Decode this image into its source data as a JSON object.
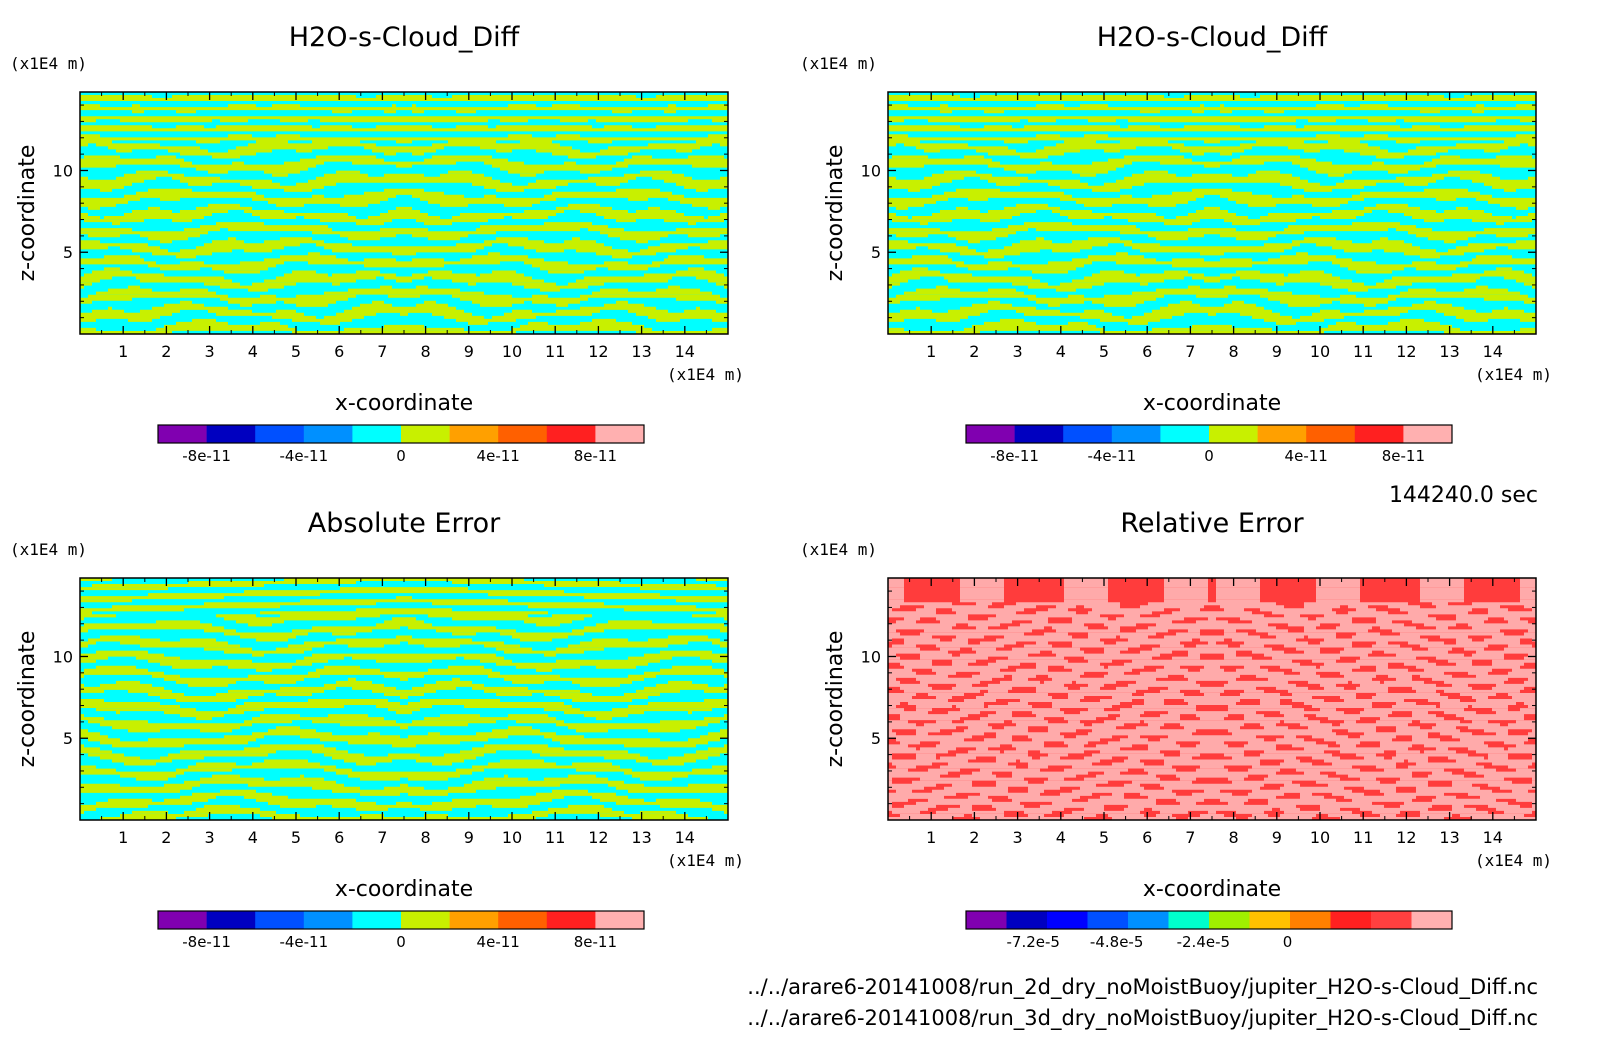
{
  "time_label": "144240.0 sec",
  "footer": {
    "file1": "../../arare6-20141008/run_2d_dry_noMoistBuoy/jupiter_H2O-s-Cloud_Diff.nc",
    "file2": "../../arare6-20141008/run_3d_dry_noMoistBuoy/jupiter_H2O-s-Cloud_Diff.nc"
  },
  "chart_data": [
    {
      "type": "heatmap",
      "title": "H2O-s-Cloud_Diff",
      "xlabel": "x-coordinate",
      "ylabel": "z-coordinate",
      "x_unit": "(x1E4 m)",
      "y_unit": "(x1E4 m)",
      "xlim": [
        0,
        15
      ],
      "ylim": [
        0,
        14.8
      ],
      "xticks": [
        "1",
        "2",
        "3",
        "4",
        "5",
        "6",
        "7",
        "8",
        "9",
        "10",
        "11",
        "12",
        "13",
        "14"
      ],
      "yticks": [
        "5",
        "10"
      ],
      "pattern": "cloud",
      "palette": [
        "#00ffff",
        "#c8f000"
      ],
      "colorbar": {
        "colors": [
          "#8000b0",
          "#0000c0",
          "#0050ff",
          "#0090ff",
          "#00ffff",
          "#c8f000",
          "#ffa000",
          "#ff6000",
          "#ff2020",
          "#ffb0b0"
        ],
        "tick_labels": [
          "-8e-11",
          "-4e-11",
          "0",
          "4e-11",
          "8e-11"
        ],
        "tick_positions": [
          1,
          3,
          5,
          7,
          9
        ]
      }
    },
    {
      "type": "heatmap",
      "title": "H2O-s-Cloud_Diff",
      "xlabel": "x-coordinate",
      "ylabel": "z-coordinate",
      "x_unit": "(x1E4 m)",
      "y_unit": "(x1E4 m)",
      "xlim": [
        0,
        15
      ],
      "ylim": [
        0,
        14.8
      ],
      "xticks": [
        "1",
        "2",
        "3",
        "4",
        "5",
        "6",
        "7",
        "8",
        "9",
        "10",
        "11",
        "12",
        "13",
        "14"
      ],
      "yticks": [
        "5",
        "10"
      ],
      "pattern": "cloud",
      "palette": [
        "#00ffff",
        "#c8f000"
      ],
      "colorbar": {
        "colors": [
          "#8000b0",
          "#0000c0",
          "#0050ff",
          "#0090ff",
          "#00ffff",
          "#c8f000",
          "#ffa000",
          "#ff6000",
          "#ff2020",
          "#ffb0b0"
        ],
        "tick_labels": [
          "-8e-11",
          "-4e-11",
          "0",
          "4e-11",
          "8e-11"
        ],
        "tick_positions": [
          1,
          3,
          5,
          7,
          9
        ]
      }
    },
    {
      "type": "heatmap",
      "title": "Absolute Error",
      "xlabel": "x-coordinate",
      "ylabel": "z-coordinate",
      "x_unit": "(x1E4 m)",
      "y_unit": "(x1E4 m)",
      "xlim": [
        0,
        15
      ],
      "ylim": [
        0,
        14.8
      ],
      "xticks": [
        "1",
        "2",
        "3",
        "4",
        "5",
        "6",
        "7",
        "8",
        "9",
        "10",
        "11",
        "12",
        "13",
        "14"
      ],
      "yticks": [
        "5",
        "10"
      ],
      "pattern": "abs",
      "palette": [
        "#00ffff",
        "#c8f000"
      ],
      "colorbar": {
        "colors": [
          "#8000b0",
          "#0000c0",
          "#0050ff",
          "#0090ff",
          "#00ffff",
          "#c8f000",
          "#ffa000",
          "#ff6000",
          "#ff2020",
          "#ffb0b0"
        ],
        "tick_labels": [
          "-8e-11",
          "-4e-11",
          "0",
          "4e-11",
          "8e-11"
        ],
        "tick_positions": [
          1,
          3,
          5,
          7,
          9
        ]
      }
    },
    {
      "type": "heatmap",
      "title": "Relative Error",
      "xlabel": "x-coordinate",
      "ylabel": "z-coordinate",
      "x_unit": "(x1E4 m)",
      "y_unit": "(x1E4 m)",
      "xlim": [
        0,
        15
      ],
      "ylim": [
        0,
        14.8
      ],
      "xticks": [
        "1",
        "2",
        "3",
        "4",
        "5",
        "6",
        "7",
        "8",
        "9",
        "10",
        "11",
        "12",
        "13",
        "14"
      ],
      "yticks": [
        "5",
        "10"
      ],
      "pattern": "rel",
      "palette": [
        "#ff3c3c",
        "#ffaaaa"
      ],
      "colorbar": {
        "colors": [
          "#8000b0",
          "#0000c0",
          "#0000ff",
          "#0050ff",
          "#0090ff",
          "#00ffcc",
          "#a0f000",
          "#ffc000",
          "#ff8000",
          "#ff2020",
          "#ff4040",
          "#ffb0b0"
        ],
        "tick_labels": [
          "-7.2e-5",
          "-4.8e-5",
          "-2.4e-5",
          "0"
        ],
        "tick_positions": [
          1.66,
          3.72,
          5.86,
          7.94
        ]
      }
    }
  ]
}
